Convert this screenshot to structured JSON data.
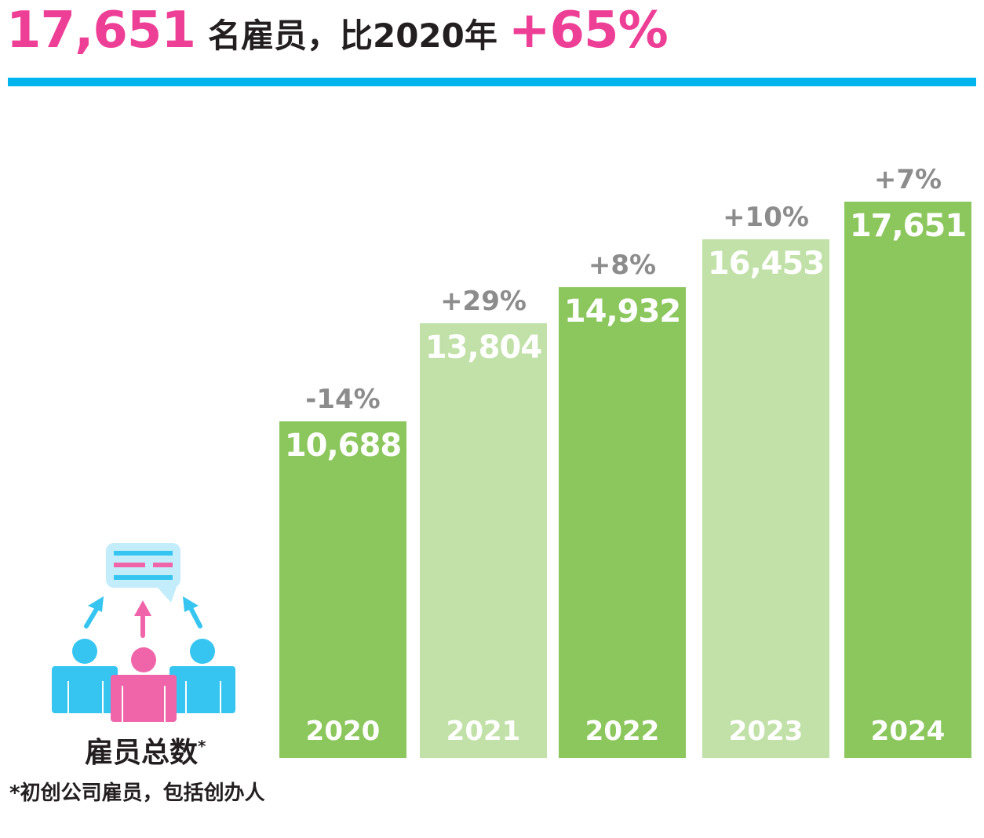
{
  "headline": {
    "total": "17,651",
    "text": "名雇员，比2020年",
    "growth": "+65%"
  },
  "side_label": {
    "title": "雇员总数",
    "asterisk": "*",
    "note": "*初创公司雇员，包括创办人"
  },
  "colors": {
    "pink": "#EE3F96",
    "cyan": "#00B5EE",
    "dark_green": "#8BC75C",
    "light_green": "#C1E1A8",
    "gray": "#8C8C8C"
  },
  "chart_data": {
    "type": "bar",
    "title": "雇员总数",
    "categories": [
      "2020",
      "2021",
      "2022",
      "2023",
      "2024"
    ],
    "values": [
      10688,
      13804,
      14932,
      16453,
      17651
    ],
    "value_labels": [
      "10,688",
      "13,804",
      "14,932",
      "16,453",
      "17,651"
    ],
    "change_labels": [
      "-14%",
      "+29%",
      "+8%",
      "+10%",
      "+7%"
    ],
    "shades": [
      "dark",
      "light",
      "dark",
      "light",
      "dark"
    ],
    "ylim": [
      0,
      17651
    ],
    "grid": false
  }
}
